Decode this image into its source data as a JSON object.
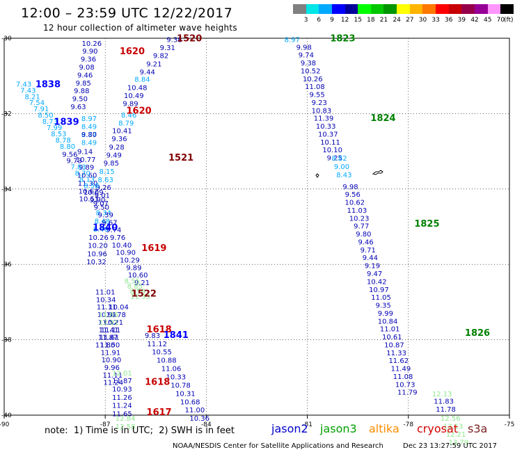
{
  "header": {
    "title": "12:00 – 23:59 UTC 12/22/2017",
    "subtitle": "12 hour collection of altimeter wave heights"
  },
  "legend": {
    "colors": [
      "#808080",
      "#00e5e5",
      "#00aaff",
      "#0000ff",
      "#00009a",
      "#00ff00",
      "#00c800",
      "#009600",
      "#ffff00",
      "#ffb400",
      "#ff7800",
      "#ff0000",
      "#c80000",
      "#96004b",
      "#960096",
      "#ff96ff",
      "#000000"
    ],
    "labels": [
      "3",
      "6",
      "9",
      "12",
      "15",
      "18",
      "21",
      "24",
      "27",
      "30",
      "33",
      "36",
      "39",
      "42",
      "45",
      "70"
    ],
    "unit": "(ft)"
  },
  "map": {
    "lon_ticks": [
      "-90",
      "-87",
      "-84",
      "-81",
      "-78",
      "-75"
    ],
    "lat_ticks": [
      "-30",
      "-32",
      "-34",
      "-36",
      "-38",
      "-40"
    ],
    "point_groups": [
      {
        "lon": -87.4,
        "lat": -30.2,
        "dlon": -0.05,
        "dlat": -0.21,
        "color": "#0000b4",
        "values": [
          "10.26",
          "9.90",
          "9.36",
          "9.08",
          "9.46",
          "9.85",
          "9.88",
          "9.50",
          "9.63"
        ]
      },
      {
        "lon": -87.48,
        "lat": -32.2,
        "dlon": 0.0,
        "dlat": -0.21,
        "color": "#00aaff",
        "values": [
          "8.97",
          "8.49",
          "8.77",
          "8.49"
        ]
      },
      {
        "lon": -87.48,
        "lat": -32.62,
        "dlon": 0.0,
        "dlat": -0.21,
        "color": "#0000b4",
        "values": [
          "9.80"
        ]
      },
      {
        "lon": -87.6,
        "lat": -33.07,
        "dlon": 0.02,
        "dlat": -0.21,
        "color": "#0000b4",
        "values": [
          "9.14",
          "10.77",
          "9.89",
          "10.60",
          "11.30",
          "10.62",
          "10.51"
        ]
      },
      {
        "lon": -84.95,
        "lat": -30.1,
        "dlon": -0.2,
        "dlat": -0.215,
        "color": "#0000b4",
        "values": [
          "9.38",
          "9.31",
          "9.82",
          "9.21",
          "9.44"
        ]
      },
      {
        "lon": -85.9,
        "lat": -31.15,
        "dlon": -0.1,
        "dlat": -0.215,
        "color": "#00aaff",
        "values": [
          "8.84"
        ]
      },
      {
        "lon": -86.05,
        "lat": -31.37,
        "dlon": -0.1,
        "dlat": -0.215,
        "color": "#0000b4",
        "values": [
          "10.48",
          "10.49",
          "9.89"
        ]
      },
      {
        "lon": -86.3,
        "lat": -32.1,
        "dlon": -0.08,
        "dlat": -0.215,
        "color": "#00aaff",
        "values": [
          "8.46",
          "8.79"
        ]
      },
      {
        "lon": -86.5,
        "lat": -32.52,
        "dlon": -0.08,
        "dlat": -0.215,
        "color": "#0000b4",
        "values": [
          "10.41",
          "9.36",
          "9.28",
          "9.49",
          "9.85"
        ]
      },
      {
        "lon": -86.95,
        "lat": -33.6,
        "dlon": -0.04,
        "dlat": -0.215,
        "color": "#00aaff",
        "values": [
          "8.15",
          "8.63"
        ]
      },
      {
        "lon": -87.05,
        "lat": -34.02,
        "dlon": -0.04,
        "dlat": -0.215,
        "color": "#0000b4",
        "values": [
          "9.26",
          "9.01",
          "9.07"
        ]
      },
      {
        "lon": -87.05,
        "lat": -34.7,
        "dlon": -0.04,
        "dlat": -0.215,
        "color": "#00aaff",
        "values": [
          "8.34",
          "8.48",
          "8.46"
        ]
      },
      {
        "lon": -87.2,
        "lat": -35.35,
        "dlon": -0.02,
        "dlat": -0.215,
        "color": "#0000b4",
        "values": [
          "10.26",
          "10.20",
          "10.96",
          "10.32"
        ]
      },
      {
        "lon": -89.42,
        "lat": -31.28,
        "dlon": 0.13,
        "dlat": -0.165,
        "color": "#00aaff",
        "values": [
          "7.43",
          "7.43",
          "8.21",
          "7.54",
          "7.91",
          "8.50",
          "8.73",
          "7.99",
          "8.53",
          "8.78",
          "8.80"
        ]
      },
      {
        "lon": -88.05,
        "lat": -33.15,
        "dlon": 0.13,
        "dlat": -0.165,
        "color": "#0000b4",
        "values": [
          "9.56",
          "9.73"
        ]
      },
      {
        "lon": -87.8,
        "lat": -33.48,
        "dlon": 0.13,
        "dlat": -0.165,
        "color": "#00aaff",
        "values": [
          "7.83",
          "8.70",
          "8.13",
          "8.58"
        ]
      },
      {
        "lon": -87.35,
        "lat": -34.15,
        "dlon": 0.12,
        "dlat": -0.2,
        "color": "#0000b4",
        "values": [
          "10.09",
          "9.90",
          "9.50",
          "9.39",
          "9.67",
          "9.74",
          "9.76",
          "10.40",
          "10.90",
          "10.29",
          "9.89",
          "10.60",
          "9.21"
        ]
      },
      {
        "lon": -86.2,
        "lat": -36.5,
        "dlon": 0.08,
        "dlat": -0.14,
        "color": "#8ce68c",
        "values": [
          "8.55",
          "8.85",
          "8.58",
          "11.35"
        ]
      },
      {
        "lon": -87.0,
        "lat": -36.8,
        "dlon": 0.02,
        "dlat": -0.2,
        "color": "#0000b4",
        "values": [
          "11.01",
          "10.34",
          "11.11",
          "10.91",
          "11.52",
          "11.41",
          "11.61",
          "11.50",
          "11.91",
          "10.90",
          "9.96",
          "11.11",
          "11.24"
        ]
      },
      {
        "lon": -86.6,
        "lat": -37.2,
        "dlon": -0.08,
        "dlat": -0.2,
        "color": "#0000b4",
        "values": [
          "10.04",
          "10.78",
          "10.21",
          "11.11",
          "11.87",
          "11.80"
        ]
      },
      {
        "lon": -86.9,
        "lat": -37.4,
        "dlon": 0.0,
        "dlat": -0.2,
        "color": "#8ce68c",
        "values": [
          "11.65",
          "12.91"
        ]
      },
      {
        "lon": -86.5,
        "lat": -38.95,
        "dlon": 0.0,
        "dlat": -0.2,
        "color": "#8ce68c",
        "values": [
          "12.01"
        ]
      },
      {
        "lon": -86.5,
        "lat": -39.15,
        "dlon": 0.0,
        "dlat": -0.22,
        "color": "#0000b4",
        "values": [
          "11.87",
          "10.93",
          "11.26",
          "11.24",
          "11.65"
        ]
      },
      {
        "lon": -86.4,
        "lat": -40.15,
        "dlon": 0.0,
        "dlat": -0.22,
        "color": "#8ce68c",
        "values": [
          "12.84",
          "12.58"
        ]
      },
      {
        "lon": -85.6,
        "lat": -37.95,
        "dlon": 0.14,
        "dlat": -0.22,
        "color": "#0000b4",
        "values": [
          "9.83",
          "11.12",
          "10.55",
          "10.88",
          "11.06",
          "10.33",
          "10.78",
          "10.31",
          "10.68",
          "11.00",
          "10.36"
        ]
      },
      {
        "lon": -81.45,
        "lat": -30.1,
        "dlon": 0.0,
        "dlat": 0.0,
        "color": "#00aaff",
        "values": [
          "8.97"
        ]
      },
      {
        "lon": -81.1,
        "lat": -30.3,
        "dlon": 0.065,
        "dlat": -0.21,
        "color": "#0000b4",
        "values": [
          "9.98",
          "9.74",
          "9.38",
          "10.52",
          "10.26",
          "11.08",
          "9.55",
          "9.23",
          "10.83",
          "11.39",
          "10.33",
          "10.37",
          "10.11",
          "10.10",
          "9.25"
        ]
      },
      {
        "lon": -80.05,
        "lat": -33.25,
        "dlon": 0.07,
        "dlat": -0.22,
        "color": "#00aaff",
        "values": [
          "8.82",
          "9.00",
          "8.43"
        ]
      },
      {
        "lon": -79.72,
        "lat": -34.0,
        "dlon": 0.065,
        "dlat": -0.21,
        "color": "#0000b4",
        "values": [
          "9.98",
          "9.56",
          "10.62",
          "11.03",
          "10.23",
          "9.77",
          "9.80",
          "9.46",
          "9.71",
          "9.44",
          "9.19",
          "9.47",
          "10.42",
          "10.97",
          "11.05",
          "9.35",
          "9.99",
          "10.84",
          "11.01",
          "10.61",
          "10.87",
          "11.33",
          "11.62",
          "11.49",
          "11.08",
          "10.73",
          "11.79"
        ]
      },
      {
        "lon": -76.95,
        "lat": -39.7,
        "dlon": 0.06,
        "dlat": -0.21,
        "color": "#0000b4",
        "values": [
          "11.83",
          "11.78"
        ]
      },
      {
        "lon": -77.0,
        "lat": -39.5,
        "dlon": 0.0,
        "dlat": 0.0,
        "color": "#8ce68c",
        "values": [
          "12.13"
        ]
      },
      {
        "lon": -76.75,
        "lat": -40.15,
        "dlon": 0.08,
        "dlat": -0.21,
        "color": "#8ce68c",
        "values": [
          "12.56",
          "13.13",
          "12.21",
          "13.79"
        ]
      }
    ],
    "time_labels": [
      {
        "text": "1520",
        "lon": -84.5,
        "lat": -30.08,
        "color": "#800000"
      },
      {
        "text": "1620",
        "lon": -86.2,
        "lat": -30.42,
        "color": "#c80000"
      },
      {
        "text": "1823",
        "lon": -79.95,
        "lat": -30.08,
        "color": "#008000"
      },
      {
        "text": "1838",
        "lon": -88.7,
        "lat": -31.3,
        "color": "#0000ff"
      },
      {
        "text": "1620",
        "lon": -86.0,
        "lat": -32.0,
        "color": "#c80000"
      },
      {
        "text": "1824",
        "lon": -78.75,
        "lat": -32.2,
        "color": "#008000"
      },
      {
        "text": "1839",
        "lon": -88.15,
        "lat": -32.3,
        "color": "#0000ff"
      },
      {
        "text": "1521",
        "lon": -84.75,
        "lat": -33.25,
        "color": "#800000"
      },
      {
        "text": "1825",
        "lon": -77.45,
        "lat": -35.0,
        "color": "#008000"
      },
      {
        "text": "1840",
        "lon": -87.0,
        "lat": -35.1,
        "color": "#0000ff"
      },
      {
        "text": "1619",
        "lon": -85.55,
        "lat": -35.65,
        "color": "#c80000"
      },
      {
        "text": "1522",
        "lon": -85.85,
        "lat": -36.85,
        "color": "#800000"
      },
      {
        "text": "1618",
        "lon": -85.4,
        "lat": -37.8,
        "color": "#c80000"
      },
      {
        "text": "1841",
        "lon": -84.9,
        "lat": -37.95,
        "color": "#0000ff"
      },
      {
        "text": "1826",
        "lon": -75.95,
        "lat": -37.9,
        "color": "#008000"
      },
      {
        "text": "1618",
        "lon": -85.45,
        "lat": -39.2,
        "color": "#c80000"
      },
      {
        "text": "1617",
        "lon": -85.4,
        "lat": -40.0,
        "color": "#c80000"
      }
    ]
  },
  "footer": {
    "note": "note:  1) Time is in UTC;  2) SWH is in feet",
    "satellites": [
      {
        "name": "jason2",
        "color": "#0000c8"
      },
      {
        "name": "jason3",
        "color": "#00a000"
      },
      {
        "name": "altika",
        "color": "#ff8c00"
      },
      {
        "name": "cryosat",
        "color": "#d20000"
      },
      {
        "name": "s3a",
        "color": "#7a1f1f"
      }
    ],
    "credit": "NOAA/NESDIS Center for Satellite Applications and Research",
    "timestamp": "Dec 23 13:27:59 UTC 2017"
  }
}
